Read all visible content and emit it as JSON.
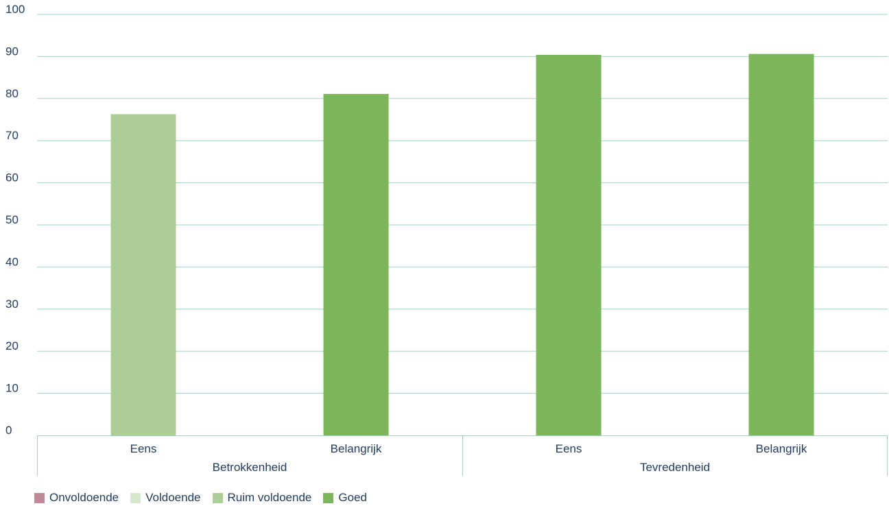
{
  "chart_data": {
    "type": "bar",
    "ylim": [
      0,
      100
    ],
    "yticks": [
      0,
      10,
      20,
      30,
      40,
      50,
      60,
      70,
      80,
      90,
      100
    ],
    "grid": true,
    "legend_placement": "bottom-left",
    "groups": [
      {
        "label": "Betrokkenheid",
        "bars": [
          {
            "label": "Eens",
            "value": 76.3,
            "category": "Ruim voldoende"
          },
          {
            "label": "Belangrijk",
            "value": 81.1,
            "category": "Goed"
          }
        ]
      },
      {
        "label": "Tevredenheid",
        "bars": [
          {
            "label": "Eens",
            "value": 90.4,
            "category": "Goed"
          },
          {
            "label": "Belangrijk",
            "value": 90.6,
            "category": "Goed"
          }
        ]
      }
    ],
    "legend": [
      {
        "label": "Onvoldoende",
        "color": "#c08a98"
      },
      {
        "label": "Voldoende",
        "color": "#d6e8cc"
      },
      {
        "label": "Ruim voldoende",
        "color": "#abcd96"
      },
      {
        "label": "Goed",
        "color": "#7cb55b"
      }
    ],
    "colors": {
      "grid": "#9ed2be",
      "text": "#1f3a5a"
    }
  }
}
